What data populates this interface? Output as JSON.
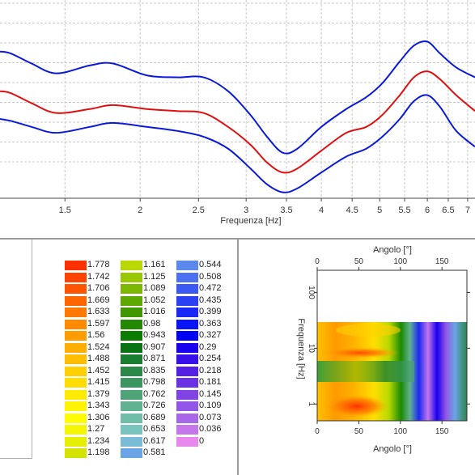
{
  "colors": {
    "outer_curve": "#0a1ad8",
    "mean_curve": "#e01010",
    "grid": "#c8c8c8",
    "axis": "#444444"
  },
  "chart_data": [
    {
      "type": "line",
      "xlabel": "Frequenza [Hz]",
      "x_scale": "log",
      "xlim": [
        1.17,
        7.2
      ],
      "ylim": [
        0,
        1
      ],
      "x_ticks": [
        {
          "value": 1.5,
          "label": "1.5"
        },
        {
          "value": 2,
          "label": "2"
        },
        {
          "value": 2.5,
          "label": "2.5"
        },
        {
          "value": 3,
          "label": "3"
        },
        {
          "value": 3.5,
          "label": "3.5"
        },
        {
          "value": 4,
          "label": "4"
        },
        {
          "value": 4.5,
          "label": "4.5"
        },
        {
          "value": 5,
          "label": "5"
        },
        {
          "value": 5.5,
          "label": "5.5"
        },
        {
          "value": 6,
          "label": "6"
        },
        {
          "value": 6.5,
          "label": "6.5"
        },
        {
          "value": 7,
          "label": "7"
        }
      ],
      "grid": true,
      "series": [
        {
          "role": "upper",
          "color": "#0a1ad8",
          "x": [
            1.17,
            1.22,
            1.32,
            1.45,
            1.65,
            1.8,
            2.05,
            2.3,
            2.55,
            2.8,
            3.05,
            3.25,
            3.45,
            3.65,
            4.0,
            4.4,
            4.75,
            5.05,
            5.4,
            5.7,
            6.0,
            6.3,
            6.7,
            7.2
          ],
          "y": [
            0.74,
            0.73,
            0.68,
            0.63,
            0.67,
            0.68,
            0.62,
            0.61,
            0.61,
            0.54,
            0.42,
            0.31,
            0.23,
            0.25,
            0.36,
            0.45,
            0.51,
            0.58,
            0.69,
            0.77,
            0.79,
            0.73,
            0.66,
            0.61
          ]
        },
        {
          "role": "mean",
          "color": "#e01010",
          "x": [
            1.17,
            1.22,
            1.32,
            1.45,
            1.65,
            1.8,
            2.05,
            2.3,
            2.55,
            2.8,
            3.05,
            3.25,
            3.45,
            3.65,
            4.0,
            4.4,
            4.75,
            5.05,
            5.4,
            5.7,
            6.0,
            6.3,
            6.7,
            7.2
          ],
          "y": [
            0.54,
            0.53,
            0.48,
            0.43,
            0.45,
            0.47,
            0.45,
            0.44,
            0.43,
            0.36,
            0.27,
            0.18,
            0.13,
            0.15,
            0.24,
            0.33,
            0.36,
            0.42,
            0.52,
            0.61,
            0.64,
            0.6,
            0.52,
            0.44
          ]
        },
        {
          "role": "lower",
          "color": "#0a1ad8",
          "x": [
            1.17,
            1.22,
            1.32,
            1.45,
            1.65,
            1.8,
            2.05,
            2.3,
            2.55,
            2.8,
            3.05,
            3.25,
            3.45,
            3.65,
            4.0,
            4.4,
            4.75,
            5.05,
            5.4,
            5.7,
            6.0,
            6.3,
            6.7,
            7.2
          ],
          "y": [
            0.4,
            0.39,
            0.36,
            0.33,
            0.36,
            0.38,
            0.36,
            0.34,
            0.31,
            0.25,
            0.15,
            0.07,
            0.03,
            0.05,
            0.13,
            0.21,
            0.25,
            0.31,
            0.4,
            0.49,
            0.52,
            0.46,
            0.34,
            0.26
          ]
        }
      ]
    },
    {
      "type": "heatmap",
      "xlabel_top": "Angolo [°]",
      "xlabel_bottom": "Angolo [°]",
      "ylabel": "Frequenza [Hz]",
      "y_scale": "log",
      "x_ticks": [
        "0",
        "50",
        "100",
        "150"
      ],
      "x_tick_values": [
        0,
        50,
        100,
        150
      ],
      "xlim": [
        0,
        180
      ],
      "y_ticks": [
        "100",
        "10",
        "1"
      ],
      "y_tick_values": [
        100,
        10,
        1
      ],
      "ylim": [
        0.5,
        250
      ],
      "data_ymax": 20
    }
  ],
  "legend": {
    "columns": [
      {
        "items": [
          {
            "label": "1.778",
            "color": "#ff3000"
          },
          {
            "label": "1.742",
            "color": "#ff4300"
          },
          {
            "label": "1.706",
            "color": "#ff5400"
          },
          {
            "label": "1.669",
            "color": "#ff6600"
          },
          {
            "label": "1.633",
            "color": "#ff7800"
          },
          {
            "label": "1.597",
            "color": "#ff8a00"
          },
          {
            "label": "1.56",
            "color": "#ff9c00"
          },
          {
            "label": "1.524",
            "color": "#ffae00"
          },
          {
            "label": "1.488",
            "color": "#ffbf00"
          },
          {
            "label": "1.452",
            "color": "#ffcf00"
          },
          {
            "label": "1.415",
            "color": "#ffdd00"
          },
          {
            "label": "1.379",
            "color": "#ffea00"
          },
          {
            "label": "1.343",
            "color": "#fff400"
          },
          {
            "label": "1.306",
            "color": "#fffd00"
          },
          {
            "label": "1.27",
            "color": "#f4f700"
          },
          {
            "label": "1.234",
            "color": "#e6ef00"
          },
          {
            "label": "1.198",
            "color": "#d2e400"
          }
        ]
      },
      {
        "items": [
          {
            "label": "1.161",
            "color": "#b8d800"
          },
          {
            "label": "1.125",
            "color": "#9ac800"
          },
          {
            "label": "1.089",
            "color": "#7cb800"
          },
          {
            "label": "1.052",
            "color": "#5ea800"
          },
          {
            "label": "1.016",
            "color": "#409800"
          },
          {
            "label": "0.98",
            "color": "#228a00"
          },
          {
            "label": "0.943",
            "color": "#0a7c00"
          },
          {
            "label": "0.907",
            "color": "#0a7414"
          },
          {
            "label": "0.871",
            "color": "#1a7e30"
          },
          {
            "label": "0.835",
            "color": "#2a8848"
          },
          {
            "label": "0.798",
            "color": "#3c9660"
          },
          {
            "label": "0.762",
            "color": "#4ea478"
          },
          {
            "label": "0.726",
            "color": "#60b290"
          },
          {
            "label": "0.689",
            "color": "#70bea8"
          },
          {
            "label": "0.653",
            "color": "#7ac4c0"
          },
          {
            "label": "0.617",
            "color": "#7abcd6"
          },
          {
            "label": "0.581",
            "color": "#6aa4e6"
          }
        ]
      },
      {
        "items": [
          {
            "label": "0.544",
            "color": "#5c88ee"
          },
          {
            "label": "0.508",
            "color": "#4c70f0"
          },
          {
            "label": "0.472",
            "color": "#3a58f2"
          },
          {
            "label": "0.435",
            "color": "#2a40f4"
          },
          {
            "label": "0.399",
            "color": "#1a28f6"
          },
          {
            "label": "0.363",
            "color": "#0a14f8"
          },
          {
            "label": "0.327",
            "color": "#0000f4"
          },
          {
            "label": "0.29",
            "color": "#1800ee"
          },
          {
            "label": "0.254",
            "color": "#3a10ea"
          },
          {
            "label": "0.218",
            "color": "#5420e6"
          },
          {
            "label": "0.181",
            "color": "#6a32e4"
          },
          {
            "label": "0.145",
            "color": "#8044e4"
          },
          {
            "label": "0.109",
            "color": "#9456e6"
          },
          {
            "label": "0.073",
            "color": "#a866e8"
          },
          {
            "label": "0.036",
            "color": "#c476ea"
          },
          {
            "label": "0",
            "color": "#e888ec"
          }
        ]
      }
    ]
  }
}
